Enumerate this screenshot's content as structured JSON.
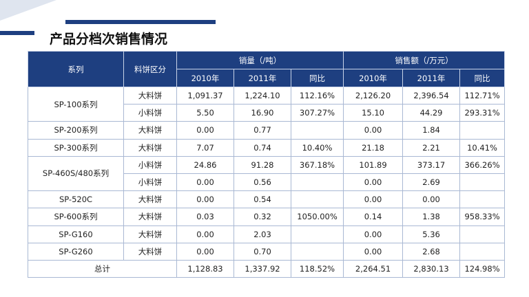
{
  "title": "产品分档次销售情况",
  "table": {
    "header": {
      "series": "系列",
      "category": "料饼区分",
      "volume_group": "销量（/吨）",
      "amount_group": "销售额（/万元）",
      "year1": "2010年",
      "year2": "2011年",
      "yoy": "同比"
    },
    "rows": [
      {
        "series": "SP-100系列",
        "category": "大料饼",
        "v2010": "1,091.37",
        "v2011": "1,224.10",
        "vyoy": "112.16%",
        "a2010": "2,126.20",
        "a2011": "2,396.54",
        "ayoy": "112.71%"
      },
      {
        "series": "",
        "category": "小料饼",
        "v2010": "5.50",
        "v2011": "16.90",
        "vyoy": "307.27%",
        "a2010": "15.10",
        "a2011": "44.29",
        "ayoy": "293.31%"
      },
      {
        "series": "SP-200系列",
        "category": "大料饼",
        "v2010": "0.00",
        "v2011": "0.77",
        "vyoy": "",
        "a2010": "0.00",
        "a2011": "1.84",
        "ayoy": ""
      },
      {
        "series": "SP-300系列",
        "category": "大料饼",
        "v2010": "7.07",
        "v2011": "0.74",
        "vyoy": "10.40%",
        "a2010": "21.18",
        "a2011": "2.21",
        "ayoy": "10.41%"
      },
      {
        "series": "SP-460S/480系列",
        "category": "小料饼",
        "v2010": "24.86",
        "v2011": "91.28",
        "vyoy": "367.18%",
        "a2010": "101.89",
        "a2011": "373.17",
        "ayoy": "366.26%"
      },
      {
        "series": "",
        "category": "小料饼",
        "v2010": "0.00",
        "v2011": "0.56",
        "vyoy": "",
        "a2010": "0.00",
        "a2011": "2.69",
        "ayoy": ""
      },
      {
        "series": "SP-520C",
        "category": "大料饼",
        "v2010": "0.00",
        "v2011": "0.54",
        "vyoy": "",
        "a2010": "0.00",
        "a2011": "0.00",
        "ayoy": ""
      },
      {
        "series": "SP-600系列",
        "category": "大料饼",
        "v2010": "0.03",
        "v2011": "0.32",
        "vyoy": "1050.00%",
        "a2010": "0.14",
        "a2011": "1.38",
        "ayoy": "958.33%"
      },
      {
        "series": "SP-G160",
        "category": "大料饼",
        "v2010": "0.00",
        "v2011": "2.03",
        "vyoy": "",
        "a2010": "0.00",
        "a2011": "5.36",
        "ayoy": ""
      },
      {
        "series": "SP-G260",
        "category": "大料饼",
        "v2010": "0.00",
        "v2011": "0.70",
        "vyoy": "",
        "a2010": "0.00",
        "a2011": "2.68",
        "ayoy": ""
      }
    ],
    "total": {
      "label": "总计",
      "v2010": "1,128.83",
      "v2011": "1,337.92",
      "vyoy": "118.52%",
      "a2010": "2,264.51",
      "a2011": "2,830.13",
      "ayoy": "124.98%"
    }
  },
  "colors": {
    "header_bg": "#1e3f80",
    "accent_line": "#1e3f80",
    "corner": "#dfe5ef"
  }
}
